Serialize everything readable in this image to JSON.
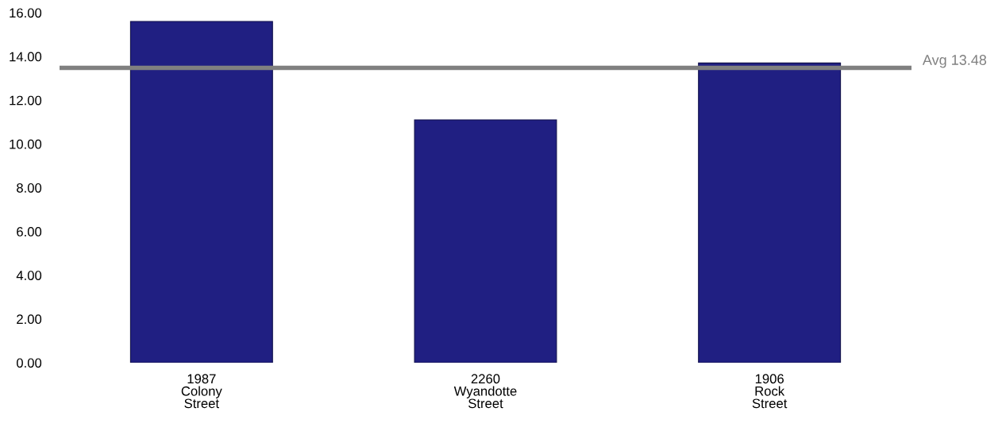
{
  "chart_data": {
    "type": "bar",
    "categories": [
      "1987\nColony\nStreet",
      "2260\nWyandotte\nStreet",
      "1906\nRock\nStreet"
    ],
    "values": [
      15.6,
      11.1,
      13.7
    ],
    "color": "#201f82",
    "ylim": [
      0,
      16
    ],
    "yticks": [
      {
        "value": 0,
        "label": "0.00"
      },
      {
        "value": 2,
        "label": "2.00"
      },
      {
        "value": 4,
        "label": "4.00"
      },
      {
        "value": 6,
        "label": "6.00"
      },
      {
        "value": 8,
        "label": "8.00"
      },
      {
        "value": 10,
        "label": "10.00"
      },
      {
        "value": 12,
        "label": "12.00"
      },
      {
        "value": 14,
        "label": "14.00"
      },
      {
        "value": 16,
        "label": "16.00"
      }
    ],
    "ref_lines": [
      {
        "axis": "y",
        "value": 13.48,
        "label": "Avg 13.48",
        "color": "#808080"
      }
    ],
    "grid": false,
    "legend": false
  }
}
